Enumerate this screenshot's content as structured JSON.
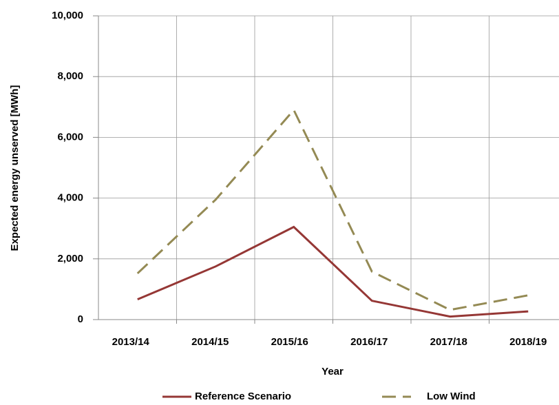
{
  "chart_data": {
    "type": "line",
    "x_label": "Year",
    "y_label": "Expected energy unserved [MWh]",
    "categories": [
      "2013/14",
      "2014/15",
      "2015/16",
      "2016/17",
      "2017/18",
      "2018/19"
    ],
    "series": [
      {
        "name": "Reference Scenario",
        "color": "#953735",
        "dash": "solid",
        "values": [
          665,
          1750,
          3050,
          620,
          100,
          270
        ]
      },
      {
        "name": "Low Wind",
        "color": "#948a54",
        "dash": "dashed",
        "values": [
          1520,
          3950,
          6900,
          1580,
          320,
          800
        ]
      }
    ],
    "ylim": [
      0,
      10000
    ],
    "yticks": [
      0,
      {
        "value": 2000,
        "label": "2,000"
      },
      {
        "value": 4000,
        "label": "4,000"
      },
      {
        "value": 6000,
        "label": "6,000"
      },
      {
        "value": 8000,
        "label": "8,000"
      },
      {
        "value": 10000,
        "label": "10,000"
      }
    ],
    "grid": true,
    "legend": "bottom"
  }
}
